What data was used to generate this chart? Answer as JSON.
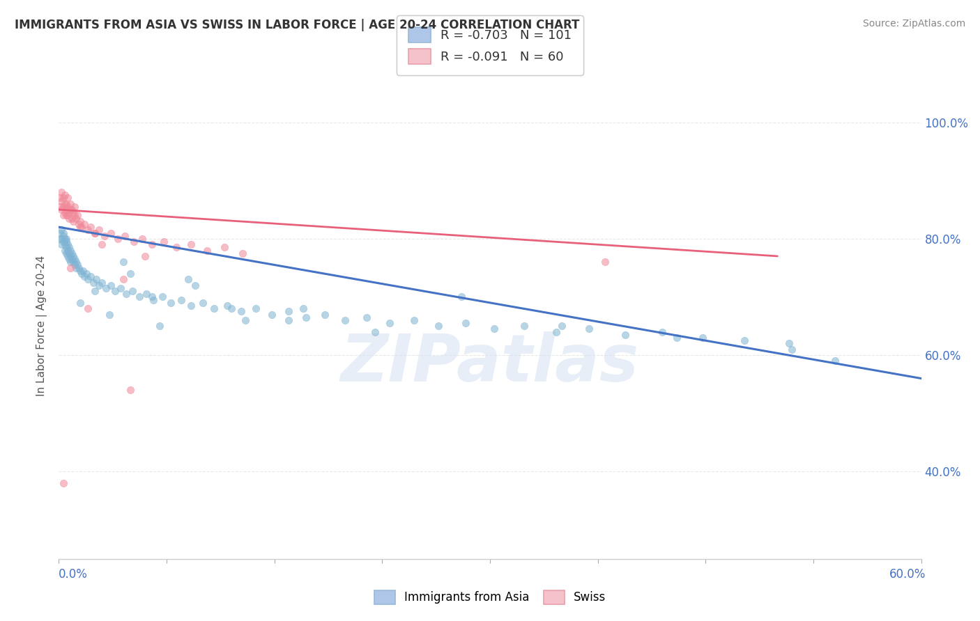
{
  "title": "IMMIGRANTS FROM ASIA VS SWISS IN LABOR FORCE | AGE 20-24 CORRELATION CHART",
  "source": "Source: ZipAtlas.com",
  "ylabel_label": "In Labor Force | Age 20-24",
  "legend_entries": [
    {
      "label": "Immigrants from Asia",
      "R": -0.703,
      "N": 101,
      "color": "#aec6e8",
      "marker_color": "#7fb3d3"
    },
    {
      "label": "Swiss",
      "R": -0.091,
      "N": 60,
      "color": "#f5c2cc",
      "marker_color": "#f08898"
    }
  ],
  "watermark": "ZIPatlas",
  "blue_scatter_x": [
    0.001,
    0.001,
    0.002,
    0.002,
    0.002,
    0.003,
    0.003,
    0.003,
    0.004,
    0.004,
    0.004,
    0.005,
    0.005,
    0.005,
    0.005,
    0.006,
    0.006,
    0.006,
    0.007,
    0.007,
    0.007,
    0.008,
    0.008,
    0.008,
    0.009,
    0.009,
    0.01,
    0.01,
    0.011,
    0.011,
    0.012,
    0.012,
    0.013,
    0.014,
    0.015,
    0.016,
    0.017,
    0.018,
    0.019,
    0.02,
    0.022,
    0.024,
    0.026,
    0.028,
    0.03,
    0.033,
    0.036,
    0.039,
    0.043,
    0.047,
    0.051,
    0.056,
    0.061,
    0.066,
    0.072,
    0.078,
    0.085,
    0.092,
    0.1,
    0.108,
    0.117,
    0.127,
    0.137,
    0.148,
    0.16,
    0.172,
    0.185,
    0.199,
    0.214,
    0.23,
    0.247,
    0.264,
    0.283,
    0.303,
    0.324,
    0.346,
    0.369,
    0.394,
    0.42,
    0.448,
    0.477,
    0.508,
    0.54,
    0.015,
    0.025,
    0.035,
    0.05,
    0.07,
    0.095,
    0.13,
    0.17,
    0.22,
    0.28,
    0.35,
    0.43,
    0.51,
    0.045,
    0.065,
    0.09,
    0.12,
    0.16
  ],
  "blue_scatter_y": [
    0.81,
    0.8,
    0.815,
    0.8,
    0.79,
    0.805,
    0.795,
    0.81,
    0.8,
    0.79,
    0.78,
    0.795,
    0.785,
    0.8,
    0.775,
    0.79,
    0.78,
    0.77,
    0.785,
    0.775,
    0.765,
    0.78,
    0.77,
    0.76,
    0.775,
    0.765,
    0.77,
    0.76,
    0.765,
    0.755,
    0.76,
    0.75,
    0.755,
    0.75,
    0.745,
    0.74,
    0.745,
    0.735,
    0.74,
    0.73,
    0.735,
    0.725,
    0.73,
    0.72,
    0.725,
    0.715,
    0.72,
    0.71,
    0.715,
    0.705,
    0.71,
    0.7,
    0.705,
    0.695,
    0.7,
    0.69,
    0.695,
    0.685,
    0.69,
    0.68,
    0.685,
    0.675,
    0.68,
    0.67,
    0.675,
    0.665,
    0.67,
    0.66,
    0.665,
    0.655,
    0.66,
    0.65,
    0.655,
    0.645,
    0.65,
    0.64,
    0.645,
    0.635,
    0.64,
    0.63,
    0.625,
    0.62,
    0.59,
    0.69,
    0.71,
    0.67,
    0.74,
    0.65,
    0.72,
    0.66,
    0.68,
    0.64,
    0.7,
    0.65,
    0.63,
    0.61,
    0.76,
    0.7,
    0.73,
    0.68,
    0.66
  ],
  "pink_scatter_x": [
    0.001,
    0.001,
    0.002,
    0.002,
    0.002,
    0.003,
    0.003,
    0.003,
    0.004,
    0.004,
    0.004,
    0.005,
    0.005,
    0.005,
    0.006,
    0.006,
    0.006,
    0.007,
    0.007,
    0.008,
    0.008,
    0.009,
    0.009,
    0.01,
    0.01,
    0.011,
    0.011,
    0.012,
    0.013,
    0.014,
    0.015,
    0.016,
    0.018,
    0.02,
    0.022,
    0.025,
    0.028,
    0.032,
    0.036,
    0.041,
    0.046,
    0.052,
    0.058,
    0.065,
    0.073,
    0.082,
    0.092,
    0.103,
    0.115,
    0.128,
    0.02,
    0.008,
    0.003,
    0.05,
    0.38,
    0.045,
    0.03,
    0.015,
    0.025,
    0.06
  ],
  "pink_scatter_y": [
    0.855,
    0.87,
    0.865,
    0.85,
    0.88,
    0.87,
    0.855,
    0.84,
    0.86,
    0.875,
    0.845,
    0.84,
    0.86,
    0.85,
    0.855,
    0.84,
    0.87,
    0.845,
    0.835,
    0.85,
    0.86,
    0.835,
    0.85,
    0.845,
    0.83,
    0.84,
    0.855,
    0.835,
    0.84,
    0.825,
    0.83,
    0.82,
    0.825,
    0.815,
    0.82,
    0.81,
    0.815,
    0.805,
    0.81,
    0.8,
    0.805,
    0.795,
    0.8,
    0.79,
    0.795,
    0.785,
    0.79,
    0.78,
    0.785,
    0.775,
    0.68,
    0.75,
    0.38,
    0.54,
    0.76,
    0.73,
    0.79,
    0.82,
    0.81,
    0.77
  ],
  "xlim": [
    0.0,
    0.6
  ],
  "ylim": [
    0.25,
    1.05
  ],
  "blue_trend_x": [
    0.0,
    0.6
  ],
  "blue_trend_y": [
    0.82,
    0.56
  ],
  "pink_trend_x": [
    0.0,
    0.5
  ],
  "pink_trend_y": [
    0.85,
    0.77
  ],
  "background_color": "#ffffff",
  "grid_color": "#e8e8e8",
  "scatter_size": 55,
  "scatter_alpha": 0.55,
  "title_color": "#333333",
  "axis_color": "#4472c4",
  "watermark_color": "#d0dff0",
  "watermark_alpha": 0.5
}
